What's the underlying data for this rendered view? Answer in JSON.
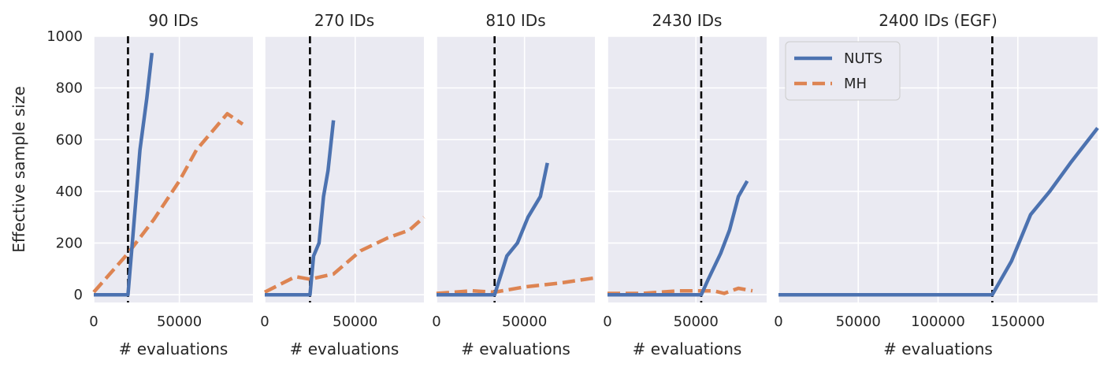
{
  "colors": {
    "background": "#eaeaf2",
    "grid": "#ffffff",
    "nuts": "#4c72b0",
    "mh": "#dd8452",
    "marker": "#000000",
    "text": "#262626"
  },
  "shared": {
    "ylabel": "Effective sample size",
    "xlabel": "# evaluations",
    "ylim": [
      -30,
      1000
    ],
    "yticks": [
      0,
      200,
      400,
      600,
      800,
      1000
    ]
  },
  "legend": {
    "placement": "top-left of last panel",
    "entries": [
      {
        "name": "NUTS",
        "style": "solid"
      },
      {
        "name": "MH",
        "style": "dashed"
      }
    ]
  },
  "chart_data": [
    {
      "type": "line",
      "title": "90 IDs",
      "xlabel": "# evaluations",
      "ylabel": "Effective sample size",
      "xlim": [
        0,
        93000
      ],
      "ylim": [
        -30,
        1000
      ],
      "xticks": [
        0,
        50000
      ],
      "grid": true,
      "vline": 20000,
      "series": [
        {
          "name": "NUTS",
          "x": [
            0,
            20000,
            23000,
            27000,
            31000,
            34000
          ],
          "y": [
            0,
            0,
            240,
            560,
            760,
            935
          ]
        },
        {
          "name": "MH",
          "x": [
            0,
            20000,
            35000,
            50000,
            60000,
            78000,
            87000
          ],
          "y": [
            10,
            160,
            290,
            440,
            560,
            700,
            660
          ]
        }
      ]
    },
    {
      "type": "line",
      "title": "270 IDs",
      "xlabel": "# evaluations",
      "xlim": [
        0,
        88000
      ],
      "ylim": [
        -30,
        1000
      ],
      "xticks": [
        0,
        50000
      ],
      "grid": true,
      "vline": 25000,
      "series": [
        {
          "name": "NUTS",
          "x": [
            0,
            25000,
            27000,
            30000,
            32500,
            35000,
            38000
          ],
          "y": [
            0,
            0,
            150,
            200,
            380,
            480,
            675
          ]
        },
        {
          "name": "MH",
          "x": [
            0,
            17000,
            25000,
            38000,
            53000,
            68000,
            80000,
            88000
          ],
          "y": [
            10,
            70,
            60,
            80,
            170,
            220,
            250,
            300
          ]
        }
      ]
    },
    {
      "type": "line",
      "title": "810 IDs",
      "xlabel": "# evaluations",
      "xlim": [
        0,
        90000
      ],
      "ylim": [
        -30,
        1000
      ],
      "xticks": [
        0,
        50000
      ],
      "grid": true,
      "vline": 33000,
      "series": [
        {
          "name": "NUTS",
          "x": [
            0,
            33000,
            40000,
            46000,
            52000,
            59000,
            63000
          ],
          "y": [
            0,
            0,
            150,
            200,
            300,
            380,
            510
          ]
        },
        {
          "name": "MH",
          "x": [
            0,
            20000,
            33000,
            50000,
            70000,
            90000
          ],
          "y": [
            5,
            15,
            10,
            30,
            45,
            65
          ]
        }
      ]
    },
    {
      "type": "line",
      "title": "2430 IDs",
      "xlabel": "# evaluations",
      "xlim": [
        0,
        90000
      ],
      "ylim": [
        -30,
        1000
      ],
      "xticks": [
        0,
        50000
      ],
      "grid": true,
      "vline": 53000,
      "series": [
        {
          "name": "NUTS",
          "x": [
            0,
            53000,
            57000,
            64000,
            69000,
            74000,
            79000
          ],
          "y": [
            0,
            0,
            60,
            160,
            250,
            380,
            440
          ]
        },
        {
          "name": "MH",
          "x": [
            0,
            20000,
            40000,
            53000,
            60000,
            66000,
            74000,
            82000
          ],
          "y": [
            5,
            5,
            15,
            15,
            15,
            5,
            25,
            15
          ]
        }
      ]
    },
    {
      "type": "line",
      "title": "2400 IDs (EGF)",
      "xlabel": "# evaluations",
      "xlim": [
        0,
        200000
      ],
      "ylim": [
        -30,
        1000
      ],
      "xticks": [
        0,
        50000,
        100000,
        150000
      ],
      "grid": true,
      "vline": 134000,
      "series": [
        {
          "name": "NUTS",
          "x": [
            0,
            134000,
            146000,
            158000,
            170000,
            183000,
            200000
          ],
          "y": [
            0,
            0,
            130,
            310,
            400,
            510,
            645
          ]
        },
        {
          "name": "MH",
          "x": [
            0,
            90000
          ],
          "y": [
            0,
            0
          ]
        }
      ]
    }
  ]
}
